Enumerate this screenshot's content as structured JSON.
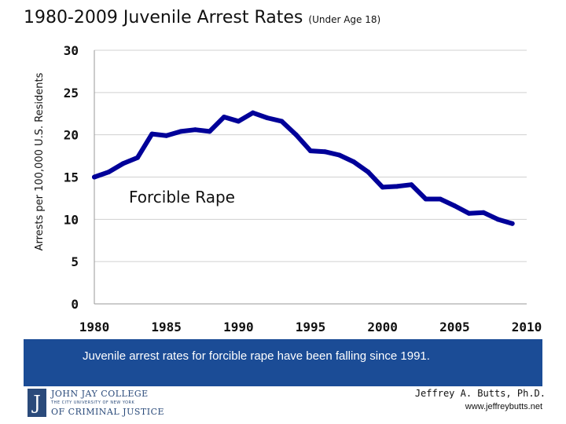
{
  "header": {
    "title": "1980-2009 Juvenile Arrest Rates",
    "subtitle": "(Under Age 18)"
  },
  "chart_data": {
    "type": "line",
    "title": "1980-2009 Juvenile Arrest Rates (Under Age 18)",
    "xlabel": "",
    "ylabel": "Arrests per 100,000 U.S. Residents",
    "xlim": [
      1980,
      2010
    ],
    "ylim": [
      0,
      30
    ],
    "xticks": [
      1980,
      1985,
      1990,
      1995,
      2000,
      2005,
      2010
    ],
    "yticks": [
      0,
      5,
      10,
      15,
      20,
      25,
      30
    ],
    "annotation": "Forcible Rape",
    "series": [
      {
        "name": "Forcible Rape",
        "color": "#000099",
        "x": [
          1980,
          1981,
          1982,
          1983,
          1984,
          1985,
          1986,
          1987,
          1988,
          1989,
          1990,
          1991,
          1992,
          1993,
          1994,
          1995,
          1996,
          1997,
          1998,
          1999,
          2000,
          2001,
          2002,
          2003,
          2004,
          2005,
          2006,
          2007,
          2008,
          2009
        ],
        "values": [
          15.0,
          15.6,
          16.6,
          17.3,
          20.1,
          19.9,
          20.4,
          20.6,
          20.4,
          22.1,
          21.6,
          22.6,
          22.0,
          21.6,
          20.0,
          18.1,
          18.0,
          17.6,
          16.8,
          15.6,
          13.8,
          13.9,
          14.1,
          12.4,
          12.4,
          11.6,
          10.7,
          10.8,
          10.0,
          9.5
        ]
      }
    ]
  },
  "footer": {
    "caption": "Juvenile arrest rates for forcible rape have been falling since 1991.",
    "logo_line1": "JOHN JAY COLLEGE",
    "logo_line2": "THE CITY UNIVERSITY OF NEW YORK",
    "logo_line3": "OF CRIMINAL JUSTICE",
    "logo_seal": "J",
    "author": "Jeffrey A. Butts, Ph.D.",
    "website": "www.jeffreybutts.net"
  }
}
